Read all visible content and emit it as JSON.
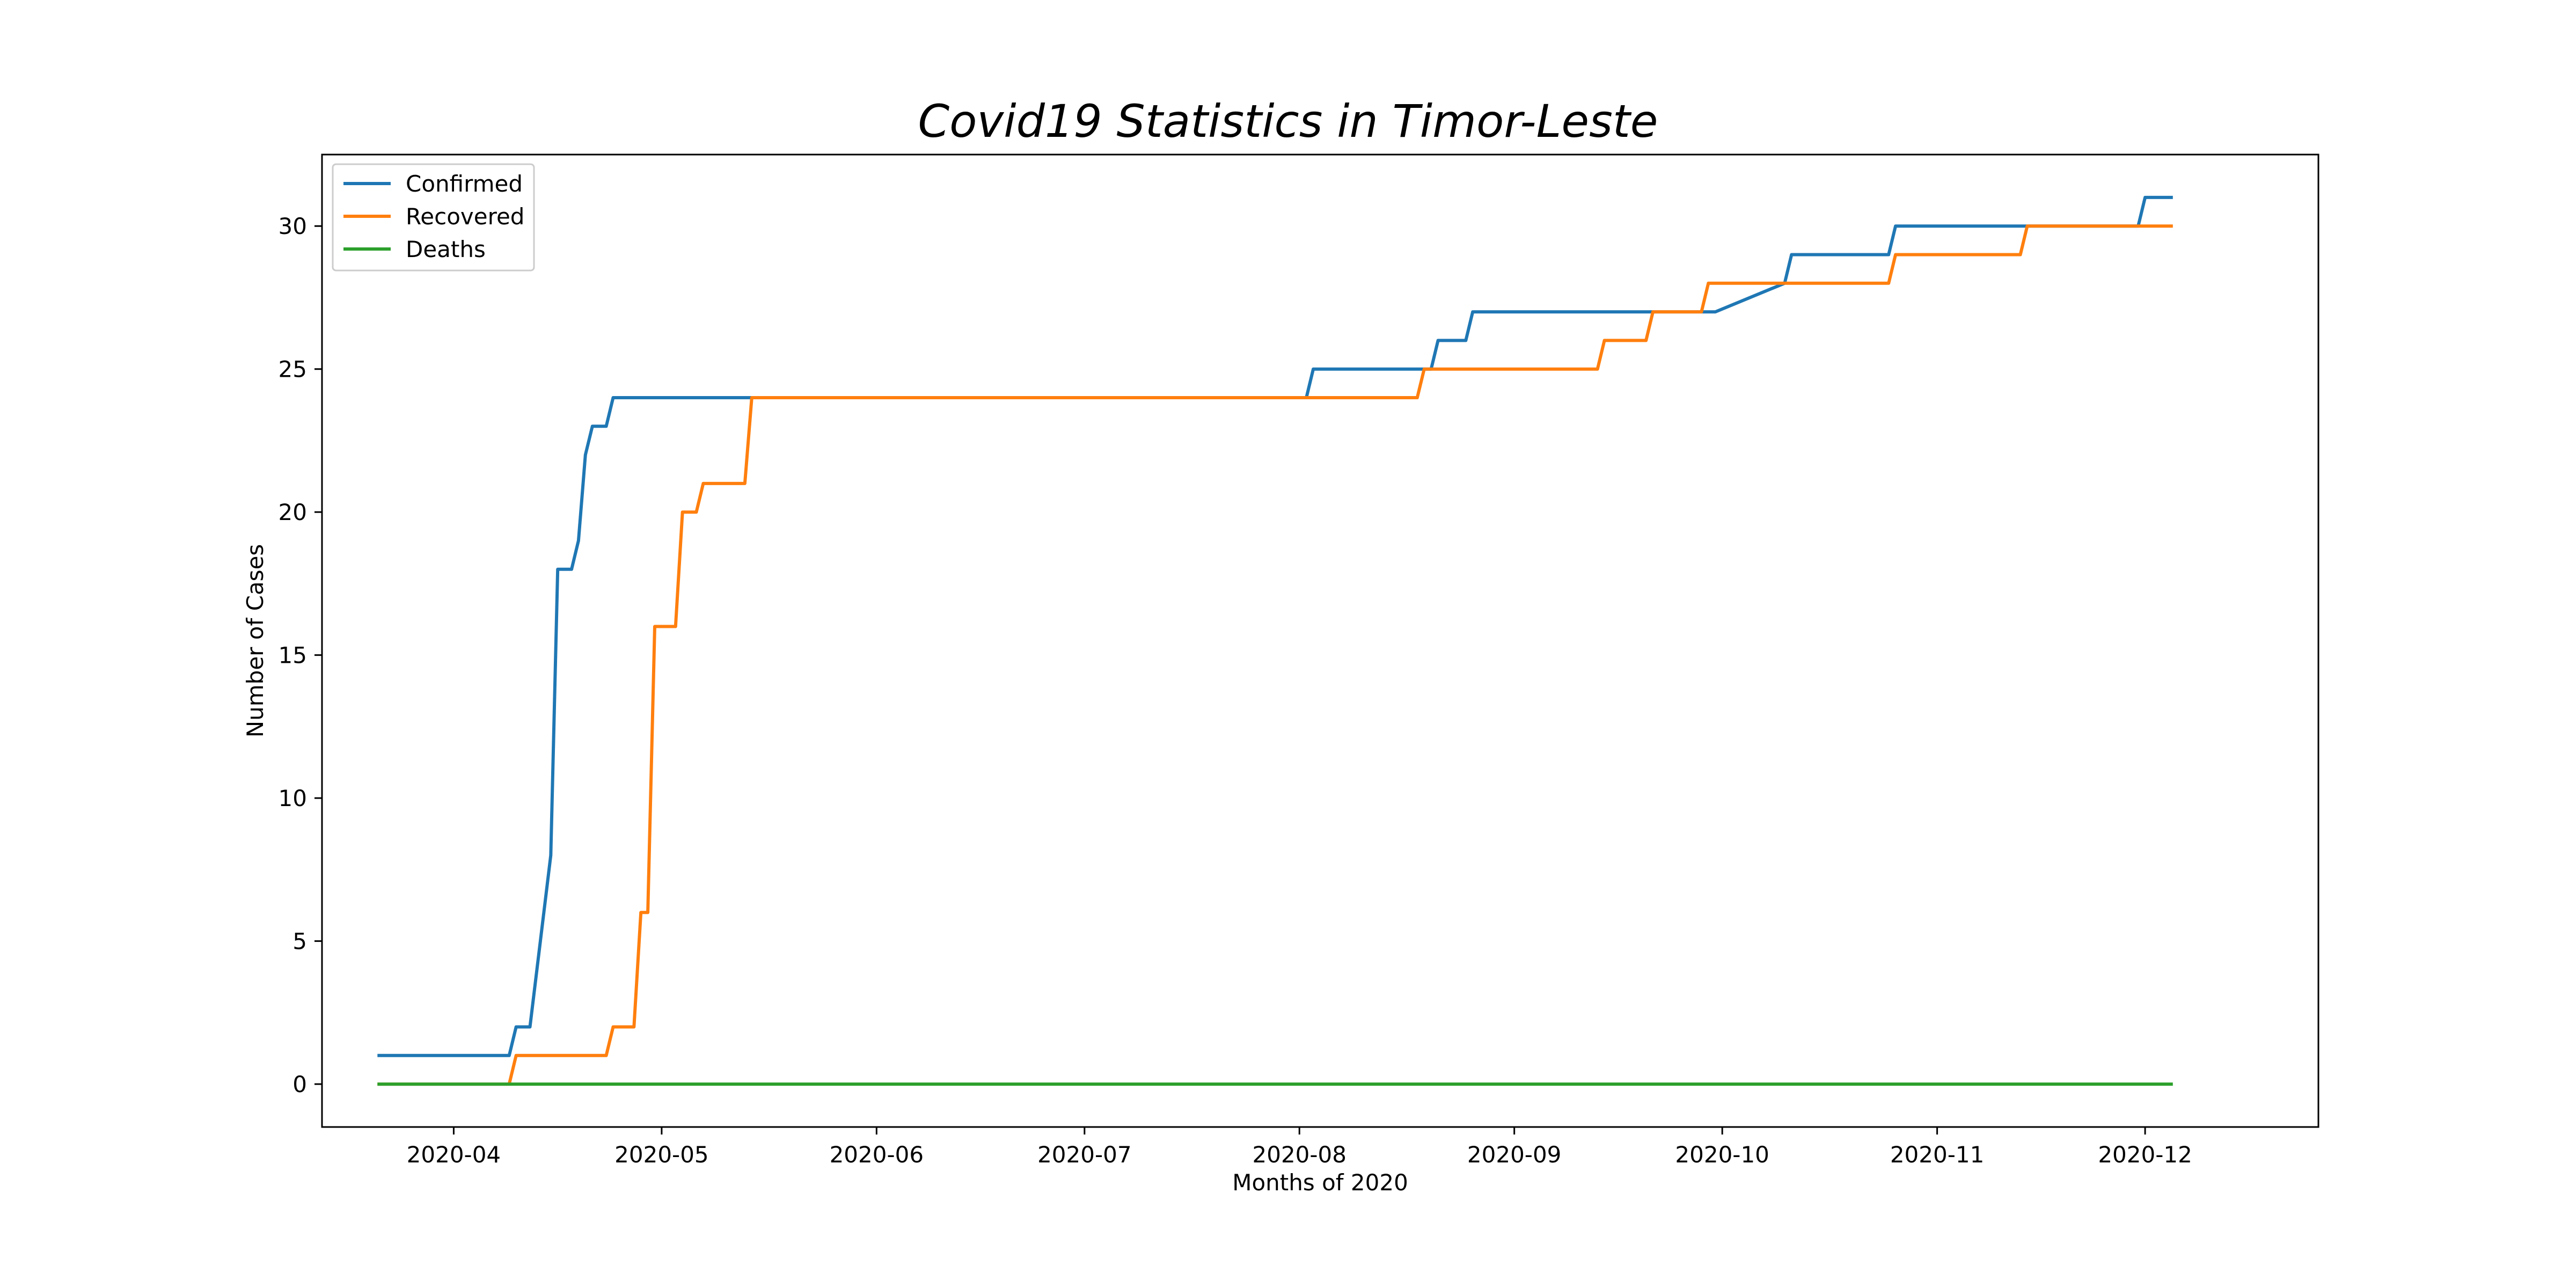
{
  "chart_data": {
    "type": "line",
    "title": "Covid19 Statistics in Timor-Leste",
    "xlabel": "Months of 2020",
    "ylabel": "Number of Cases",
    "xlim": [
      "2020-03-13",
      "2020-12-26"
    ],
    "ylim": [
      -1.5,
      32.5
    ],
    "xticks": [
      "2020-04",
      "2020-05",
      "2020-06",
      "2020-07",
      "2020-08",
      "2020-09",
      "2020-10",
      "2020-11",
      "2020-12"
    ],
    "yticks": [
      0,
      5,
      10,
      15,
      20,
      25,
      30
    ],
    "grid": false,
    "legend": "upper-left",
    "series": [
      {
        "name": "Confirmed",
        "color": "#1f77b4",
        "points": [
          [
            "2020-03-21",
            1
          ],
          [
            "2020-04-09",
            1
          ],
          [
            "2020-04-10",
            2
          ],
          [
            "2020-04-12",
            2
          ],
          [
            "2020-04-15",
            8
          ],
          [
            "2020-04-16",
            18
          ],
          [
            "2020-04-18",
            18
          ],
          [
            "2020-04-19",
            19
          ],
          [
            "2020-04-20",
            22
          ],
          [
            "2020-04-21",
            23
          ],
          [
            "2020-04-23",
            23
          ],
          [
            "2020-04-24",
            24
          ],
          [
            "2020-08-02",
            24
          ],
          [
            "2020-08-03",
            25
          ],
          [
            "2020-08-20",
            25
          ],
          [
            "2020-08-21",
            26
          ],
          [
            "2020-08-25",
            26
          ],
          [
            "2020-08-26",
            27
          ],
          [
            "2020-09-30",
            27
          ],
          [
            "2020-10-10",
            28
          ],
          [
            "2020-10-11",
            29
          ],
          [
            "2020-10-25",
            29
          ],
          [
            "2020-10-26",
            30
          ],
          [
            "2020-11-30",
            30
          ],
          [
            "2020-12-01",
            31
          ],
          [
            "2020-12-05",
            31
          ]
        ]
      },
      {
        "name": "Recovered",
        "color": "#ff7f0e",
        "points": [
          [
            "2020-03-21",
            0
          ],
          [
            "2020-04-09",
            0
          ],
          [
            "2020-04-10",
            1
          ],
          [
            "2020-04-23",
            1
          ],
          [
            "2020-04-24",
            2
          ],
          [
            "2020-04-27",
            2
          ],
          [
            "2020-04-28",
            6
          ],
          [
            "2020-04-29",
            6
          ],
          [
            "2020-04-30",
            16
          ],
          [
            "2020-05-03",
            16
          ],
          [
            "2020-05-04",
            20
          ],
          [
            "2020-05-06",
            20
          ],
          [
            "2020-05-07",
            21
          ],
          [
            "2020-05-13",
            21
          ],
          [
            "2020-05-14",
            24
          ],
          [
            "2020-08-18",
            24
          ],
          [
            "2020-08-19",
            25
          ],
          [
            "2020-09-13",
            25
          ],
          [
            "2020-09-14",
            26
          ],
          [
            "2020-09-20",
            26
          ],
          [
            "2020-09-21",
            27
          ],
          [
            "2020-09-28",
            27
          ],
          [
            "2020-09-29",
            28
          ],
          [
            "2020-10-25",
            28
          ],
          [
            "2020-10-26",
            29
          ],
          [
            "2020-11-13",
            29
          ],
          [
            "2020-11-14",
            30
          ],
          [
            "2020-12-05",
            30
          ]
        ]
      },
      {
        "name": "Deaths",
        "color": "#2ca02c",
        "points": [
          [
            "2020-03-21",
            0
          ],
          [
            "2020-12-05",
            0
          ]
        ]
      }
    ]
  }
}
